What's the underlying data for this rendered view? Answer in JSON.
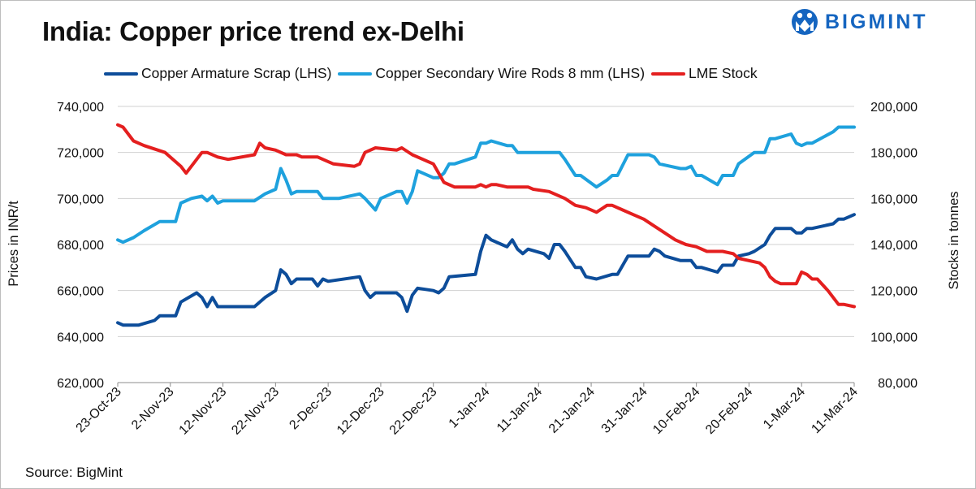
{
  "title": "India: Copper price trend ex-Delhi",
  "brand": "BIGMINT",
  "source": "Source: BigMint",
  "chart_data": {
    "type": "line",
    "title": "India: Copper price trend ex-Delhi",
    "ylabel_left": "Prices in INR/t",
    "ylabel_right": "Stocks in tonnes",
    "ylim_left": [
      620000,
      740000
    ],
    "ylim_right": [
      80000,
      200000
    ],
    "yticks_left": [
      620000,
      640000,
      660000,
      680000,
      700000,
      720000,
      740000
    ],
    "yticks_right": [
      80000,
      100000,
      120000,
      140000,
      160000,
      180000,
      200000
    ],
    "ytick_labels_left": [
      "620,000",
      "640,000",
      "660,000",
      "680,000",
      "700,000",
      "720,000",
      "740,000"
    ],
    "ytick_labels_right": [
      "80,000",
      "100,000",
      "120,000",
      "140,000",
      "160,000",
      "180,000",
      "200,000"
    ],
    "x_range": [
      "2023-10-23",
      "2024-03-11"
    ],
    "x_tick_labels": [
      "23-Oct-23",
      "2-Nov-23",
      "12-Nov-23",
      "22-Nov-23",
      "2-Dec-23",
      "12-Dec-23",
      "22-Dec-23",
      "1-Jan-24",
      "11-Jan-24",
      "21-Jan-24",
      "31-Jan-24",
      "10-Feb-24",
      "20-Feb-24",
      "1-Mar-24",
      "11-Mar-24"
    ],
    "x_tick_dates": [
      "2023-10-23",
      "2023-11-02",
      "2023-11-12",
      "2023-11-22",
      "2023-12-02",
      "2023-12-12",
      "2023-12-22",
      "2024-01-01",
      "2024-01-11",
      "2024-01-21",
      "2024-01-31",
      "2024-02-10",
      "2024-02-20",
      "2024-03-01",
      "2024-03-11"
    ],
    "grid": true,
    "legend_position": "top",
    "series": [
      {
        "name": "Copper Armature Scrap (LHS)",
        "axis": "left",
        "color": "#0d4d9a",
        "points": [
          [
            "2023-10-23",
            646000
          ],
          [
            "2023-10-24",
            645000
          ],
          [
            "2023-10-27",
            645000
          ],
          [
            "2023-10-30",
            647000
          ],
          [
            "2023-10-31",
            649000
          ],
          [
            "2023-11-03",
            649000
          ],
          [
            "2023-11-04",
            655000
          ],
          [
            "2023-11-07",
            659000
          ],
          [
            "2023-11-08",
            657000
          ],
          [
            "2023-11-09",
            653000
          ],
          [
            "2023-11-10",
            657000
          ],
          [
            "2023-11-11",
            653000
          ],
          [
            "2023-11-18",
            653000
          ],
          [
            "2023-11-20",
            657000
          ],
          [
            "2023-11-22",
            660000
          ],
          [
            "2023-11-23",
            669000
          ],
          [
            "2023-11-24",
            667000
          ],
          [
            "2023-11-25",
            663000
          ],
          [
            "2023-11-26",
            665000
          ],
          [
            "2023-11-29",
            665000
          ],
          [
            "2023-11-30",
            662000
          ],
          [
            "2023-12-01",
            665000
          ],
          [
            "2023-12-02",
            664000
          ],
          [
            "2023-12-08",
            666000
          ],
          [
            "2023-12-09",
            660000
          ],
          [
            "2023-12-10",
            657000
          ],
          [
            "2023-12-11",
            659000
          ],
          [
            "2023-12-15",
            659000
          ],
          [
            "2023-12-16",
            657000
          ],
          [
            "2023-12-17",
            651000
          ],
          [
            "2023-12-18",
            658000
          ],
          [
            "2023-12-19",
            661000
          ],
          [
            "2023-12-22",
            660000
          ],
          [
            "2023-12-23",
            659000
          ],
          [
            "2023-12-24",
            661000
          ],
          [
            "2023-12-25",
            666000
          ],
          [
            "2023-12-30",
            667000
          ],
          [
            "2023-12-31",
            677000
          ],
          [
            "2024-01-01",
            684000
          ],
          [
            "2024-01-02",
            682000
          ],
          [
            "2024-01-04",
            680000
          ],
          [
            "2024-01-05",
            679000
          ],
          [
            "2024-01-06",
            682000
          ],
          [
            "2024-01-07",
            678000
          ],
          [
            "2024-01-08",
            676000
          ],
          [
            "2024-01-09",
            678000
          ],
          [
            "2024-01-12",
            676000
          ],
          [
            "2024-01-13",
            674000
          ],
          [
            "2024-01-14",
            680000
          ],
          [
            "2024-01-15",
            680000
          ],
          [
            "2024-01-16",
            677000
          ],
          [
            "2024-01-18",
            670000
          ],
          [
            "2024-01-19",
            670000
          ],
          [
            "2024-01-20",
            666000
          ],
          [
            "2024-01-22",
            665000
          ],
          [
            "2024-01-25",
            667000
          ],
          [
            "2024-01-26",
            667000
          ],
          [
            "2024-01-28",
            675000
          ],
          [
            "2024-02-01",
            675000
          ],
          [
            "2024-02-02",
            678000
          ],
          [
            "2024-02-03",
            677000
          ],
          [
            "2024-02-04",
            675000
          ],
          [
            "2024-02-07",
            673000
          ],
          [
            "2024-02-09",
            673000
          ],
          [
            "2024-02-10",
            670000
          ],
          [
            "2024-02-11",
            670000
          ],
          [
            "2024-02-14",
            668000
          ],
          [
            "2024-02-15",
            671000
          ],
          [
            "2024-02-17",
            671000
          ],
          [
            "2024-02-18",
            675000
          ],
          [
            "2024-02-20",
            676000
          ],
          [
            "2024-02-21",
            677000
          ],
          [
            "2024-02-23",
            680000
          ],
          [
            "2024-02-24",
            684000
          ],
          [
            "2024-02-25",
            687000
          ],
          [
            "2024-02-28",
            687000
          ],
          [
            "2024-02-29",
            685000
          ],
          [
            "2024-03-01",
            685000
          ],
          [
            "2024-03-02",
            687000
          ],
          [
            "2024-03-03",
            687000
          ],
          [
            "2024-03-07",
            689000
          ],
          [
            "2024-03-08",
            691000
          ],
          [
            "2024-03-09",
            691000
          ],
          [
            "2024-03-11",
            693000
          ]
        ]
      },
      {
        "name": "Copper Secondary Wire Rods 8 mm (LHS)",
        "axis": "left",
        "color": "#1ea1dd",
        "points": [
          [
            "2023-10-23",
            682000
          ],
          [
            "2023-10-24",
            681000
          ],
          [
            "2023-10-26",
            683000
          ],
          [
            "2023-10-28",
            686000
          ],
          [
            "2023-10-31",
            690000
          ],
          [
            "2023-11-03",
            690000
          ],
          [
            "2023-11-04",
            698000
          ],
          [
            "2023-11-06",
            700000
          ],
          [
            "2023-11-08",
            701000
          ],
          [
            "2023-11-09",
            699000
          ],
          [
            "2023-11-10",
            701000
          ],
          [
            "2023-11-11",
            698000
          ],
          [
            "2023-11-12",
            699000
          ],
          [
            "2023-11-18",
            699000
          ],
          [
            "2023-11-20",
            702000
          ],
          [
            "2023-11-22",
            704000
          ],
          [
            "2023-11-23",
            713000
          ],
          [
            "2023-11-24",
            708000
          ],
          [
            "2023-11-25",
            702000
          ],
          [
            "2023-11-26",
            703000
          ],
          [
            "2023-11-30",
            703000
          ],
          [
            "2023-12-01",
            700000
          ],
          [
            "2023-12-04",
            700000
          ],
          [
            "2023-12-08",
            702000
          ],
          [
            "2023-12-09",
            700000
          ],
          [
            "2023-12-11",
            695000
          ],
          [
            "2023-12-12",
            700000
          ],
          [
            "2023-12-15",
            703000
          ],
          [
            "2023-12-16",
            703000
          ],
          [
            "2023-12-17",
            698000
          ],
          [
            "2023-12-18",
            703000
          ],
          [
            "2023-12-19",
            712000
          ],
          [
            "2023-12-22",
            709000
          ],
          [
            "2023-12-23",
            709000
          ],
          [
            "2023-12-24",
            711000
          ],
          [
            "2023-12-25",
            715000
          ],
          [
            "2023-12-26",
            715000
          ],
          [
            "2023-12-30",
            718000
          ],
          [
            "2023-12-31",
            724000
          ],
          [
            "2024-01-01",
            724000
          ],
          [
            "2024-01-02",
            725000
          ],
          [
            "2024-01-05",
            723000
          ],
          [
            "2024-01-06",
            723000
          ],
          [
            "2024-01-07",
            720000
          ],
          [
            "2024-01-15",
            720000
          ],
          [
            "2024-01-16",
            717000
          ],
          [
            "2024-01-18",
            710000
          ],
          [
            "2024-01-19",
            710000
          ],
          [
            "2024-01-22",
            705000
          ],
          [
            "2024-01-24",
            708000
          ],
          [
            "2024-01-25",
            710000
          ],
          [
            "2024-01-26",
            710000
          ],
          [
            "2024-01-28",
            719000
          ],
          [
            "2024-02-01",
            719000
          ],
          [
            "2024-02-02",
            718000
          ],
          [
            "2024-02-03",
            715000
          ],
          [
            "2024-02-05",
            714000
          ],
          [
            "2024-02-07",
            713000
          ],
          [
            "2024-02-08",
            713000
          ],
          [
            "2024-02-09",
            714000
          ],
          [
            "2024-02-10",
            710000
          ],
          [
            "2024-02-11",
            710000
          ],
          [
            "2024-02-14",
            706000
          ],
          [
            "2024-02-15",
            710000
          ],
          [
            "2024-02-17",
            710000
          ],
          [
            "2024-02-18",
            715000
          ],
          [
            "2024-02-21",
            720000
          ],
          [
            "2024-02-23",
            720000
          ],
          [
            "2024-02-24",
            726000
          ],
          [
            "2024-02-25",
            726000
          ],
          [
            "2024-02-28",
            728000
          ],
          [
            "2024-02-29",
            724000
          ],
          [
            "2024-03-01",
            723000
          ],
          [
            "2024-03-02",
            724000
          ],
          [
            "2024-03-03",
            724000
          ],
          [
            "2024-03-07",
            729000
          ],
          [
            "2024-03-08",
            731000
          ],
          [
            "2024-03-11",
            731000
          ]
        ]
      },
      {
        "name": "LME Stock",
        "axis": "right",
        "color": "#e41f1f",
        "points": [
          [
            "2023-10-23",
            192000
          ],
          [
            "2023-10-24",
            191000
          ],
          [
            "2023-10-26",
            185000
          ],
          [
            "2023-10-28",
            183000
          ],
          [
            "2023-11-01",
            180000
          ],
          [
            "2023-11-04",
            174000
          ],
          [
            "2023-11-05",
            171000
          ],
          [
            "2023-11-06",
            174000
          ],
          [
            "2023-11-08",
            180000
          ],
          [
            "2023-11-09",
            180000
          ],
          [
            "2023-11-11",
            178000
          ],
          [
            "2023-11-13",
            177000
          ],
          [
            "2023-11-18",
            179000
          ],
          [
            "2023-11-19",
            184000
          ],
          [
            "2023-11-20",
            182000
          ],
          [
            "2023-11-22",
            181000
          ],
          [
            "2023-11-24",
            179000
          ],
          [
            "2023-11-26",
            179000
          ],
          [
            "2023-11-27",
            178000
          ],
          [
            "2023-11-30",
            178000
          ],
          [
            "2023-12-01",
            177000
          ],
          [
            "2023-12-03",
            175000
          ],
          [
            "2023-12-07",
            174000
          ],
          [
            "2023-12-08",
            175000
          ],
          [
            "2023-12-09",
            180000
          ],
          [
            "2023-12-11",
            182000
          ],
          [
            "2023-12-15",
            181000
          ],
          [
            "2023-12-16",
            182000
          ],
          [
            "2023-12-18",
            179000
          ],
          [
            "2023-12-22",
            175000
          ],
          [
            "2023-12-24",
            167000
          ],
          [
            "2023-12-26",
            165000
          ],
          [
            "2023-12-30",
            165000
          ],
          [
            "2023-12-31",
            166000
          ],
          [
            "2024-01-01",
            165000
          ],
          [
            "2024-01-02",
            166000
          ],
          [
            "2024-01-03",
            166000
          ],
          [
            "2024-01-05",
            165000
          ],
          [
            "2024-01-07",
            165000
          ],
          [
            "2024-01-08",
            165000
          ],
          [
            "2024-01-09",
            165000
          ],
          [
            "2024-01-10",
            164000
          ],
          [
            "2024-01-13",
            163000
          ],
          [
            "2024-01-16",
            160000
          ],
          [
            "2024-01-18",
            157000
          ],
          [
            "2024-01-20",
            156000
          ],
          [
            "2024-01-22",
            154000
          ],
          [
            "2024-01-24",
            157000
          ],
          [
            "2024-01-25",
            157000
          ],
          [
            "2024-01-27",
            155000
          ],
          [
            "2024-01-29",
            153000
          ],
          [
            "2024-01-31",
            151000
          ],
          [
            "2024-02-02",
            148000
          ],
          [
            "2024-02-04",
            145000
          ],
          [
            "2024-02-06",
            142000
          ],
          [
            "2024-02-08",
            140000
          ],
          [
            "2024-02-10",
            139000
          ],
          [
            "2024-02-12",
            137000
          ],
          [
            "2024-02-15",
            137000
          ],
          [
            "2024-02-17",
            136000
          ],
          [
            "2024-02-18",
            134000
          ],
          [
            "2024-02-22",
            132000
          ],
          [
            "2024-02-23",
            130000
          ],
          [
            "2024-02-24",
            126000
          ],
          [
            "2024-02-25",
            124000
          ],
          [
            "2024-02-26",
            123000
          ],
          [
            "2024-02-29",
            123000
          ],
          [
            "2024-03-01",
            128000
          ],
          [
            "2024-03-02",
            127000
          ],
          [
            "2024-03-03",
            125000
          ],
          [
            "2024-03-04",
            125000
          ],
          [
            "2024-03-06",
            120000
          ],
          [
            "2024-03-07",
            117000
          ],
          [
            "2024-03-08",
            114000
          ],
          [
            "2024-03-09",
            114000
          ],
          [
            "2024-03-11",
            113000
          ]
        ]
      }
    ]
  }
}
